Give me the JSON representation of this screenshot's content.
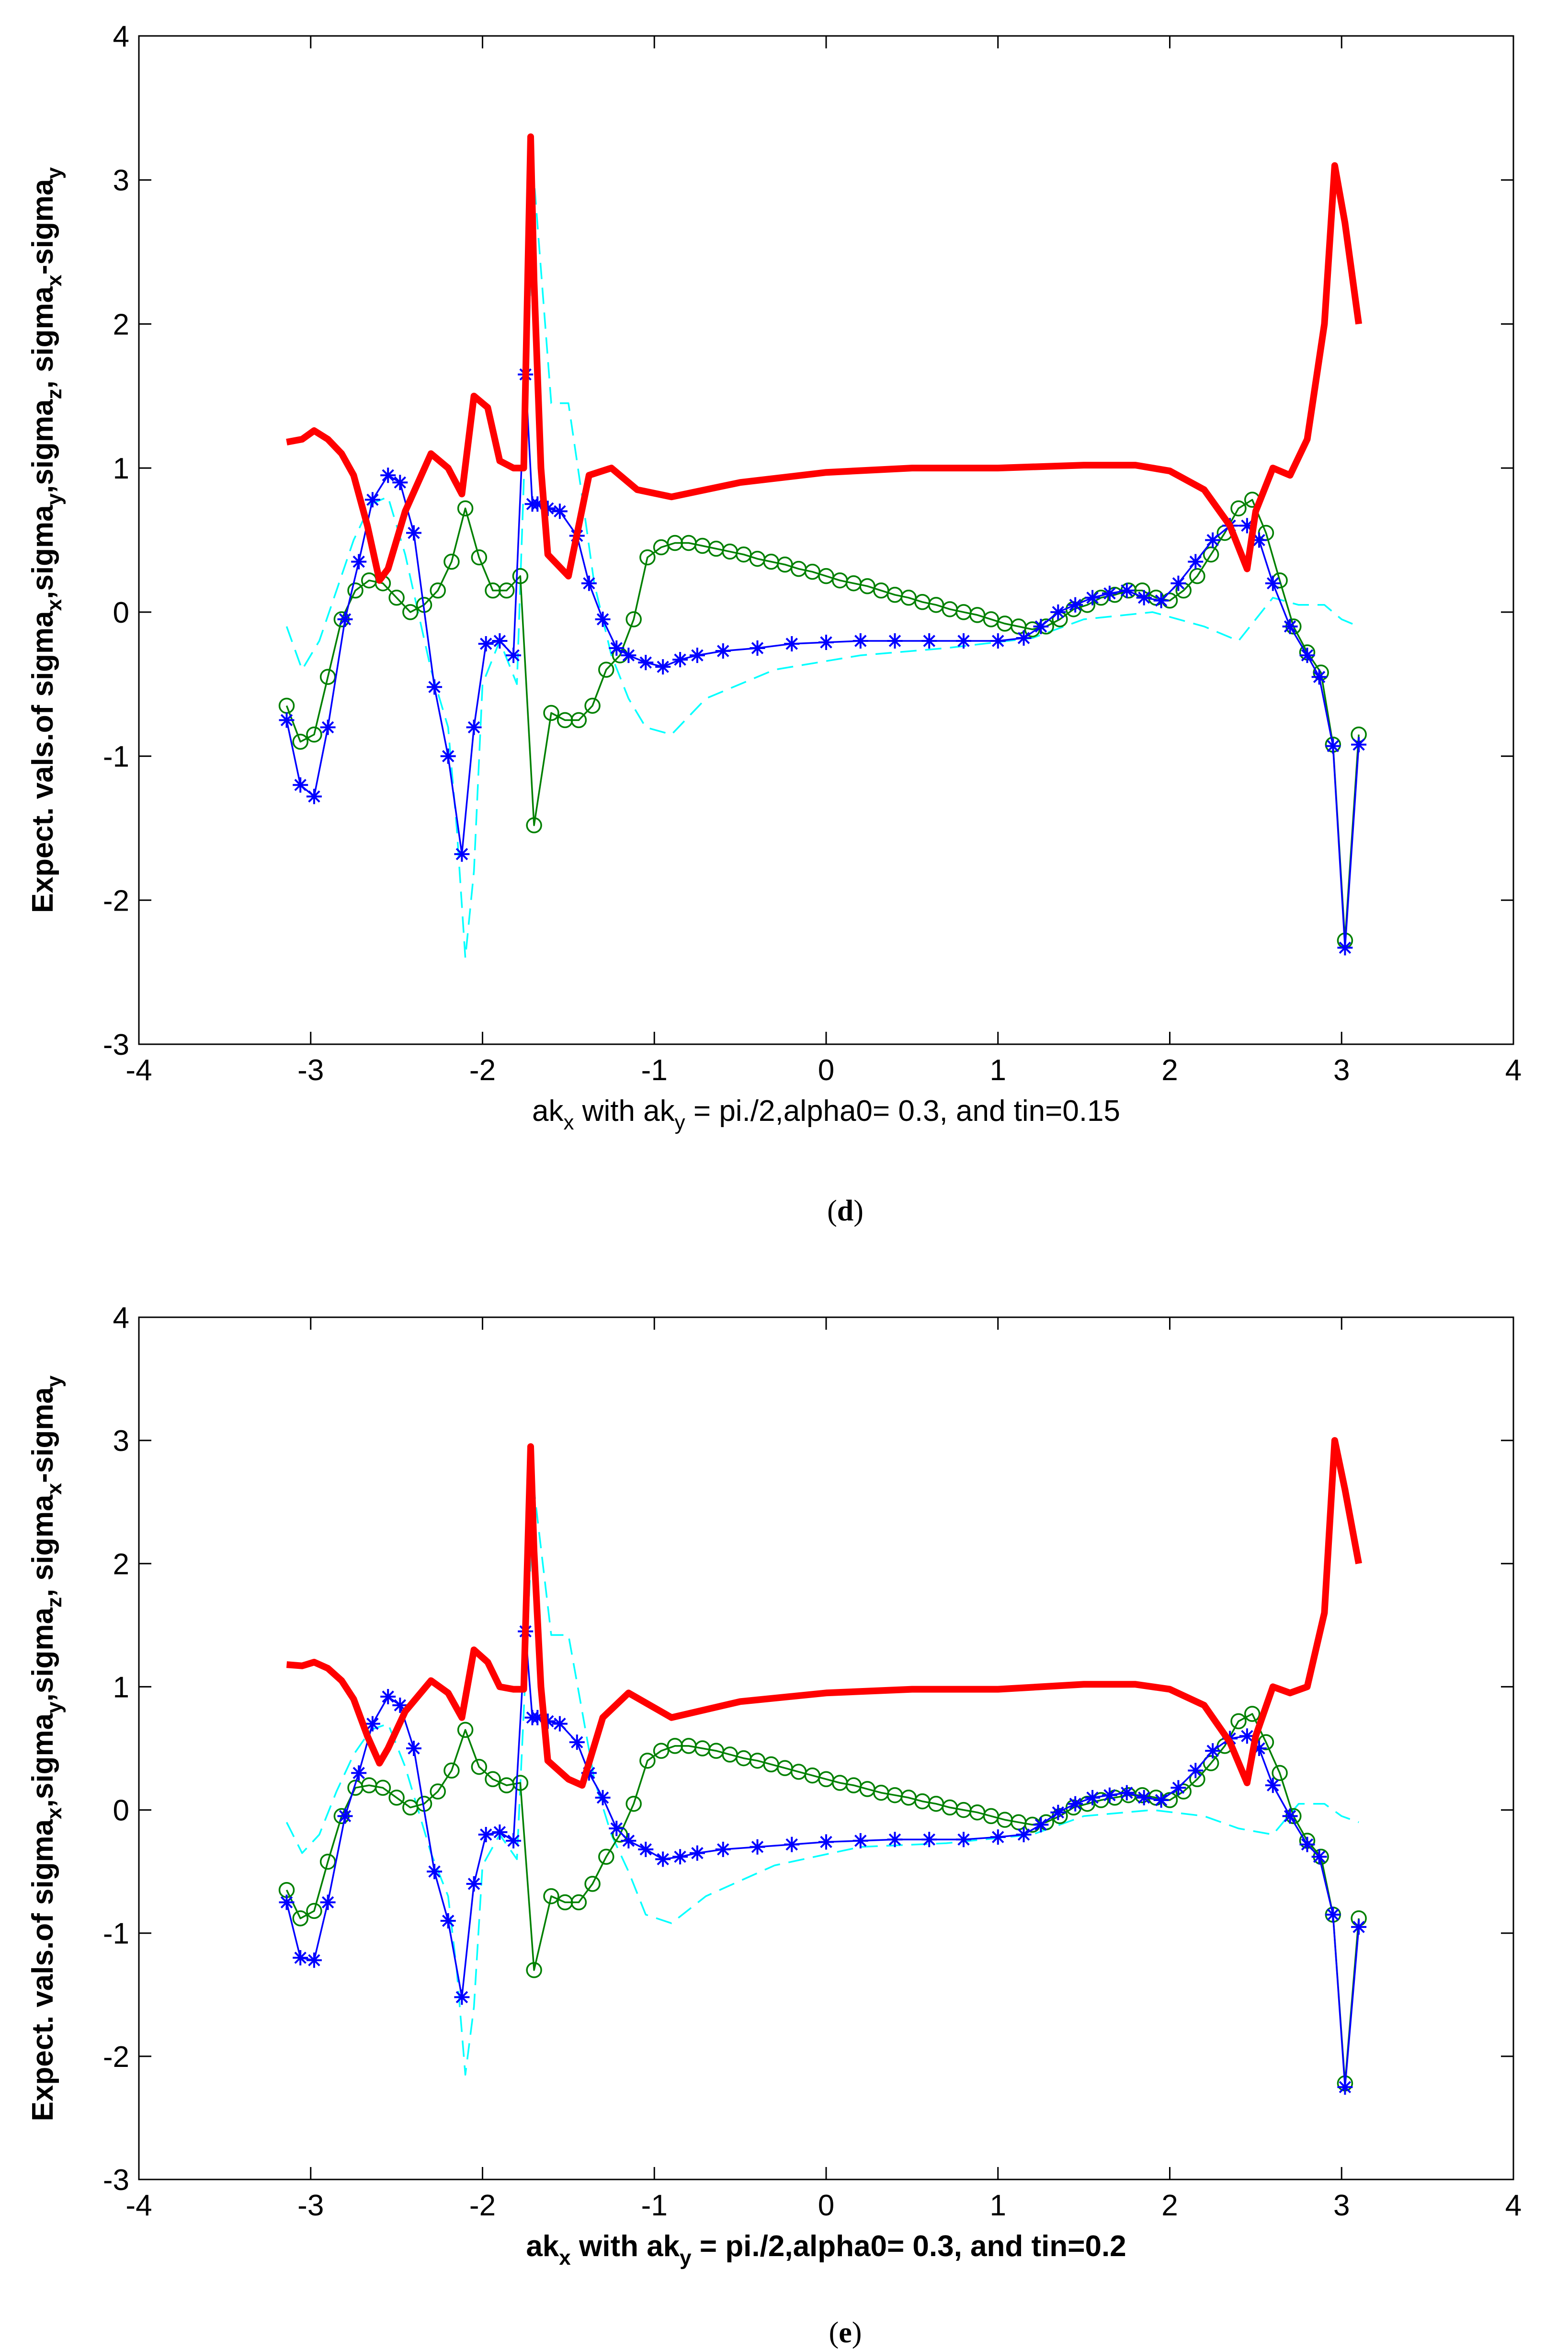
{
  "chart_data": [
    {
      "id": "d",
      "type": "line",
      "caption_open": "(",
      "caption_letter": "d",
      "caption_close": ")",
      "xlabel": {
        "pre": "ak",
        "pre_sub": "x",
        "mid": " with ak",
        "mid_sub": "y",
        "post": " = pi./2,alpha0= 0.3, and tin=0.15"
      },
      "ylabel": {
        "t1": "Expect. vals.of sigma",
        "s1": "x",
        "t2": ",sigma",
        "s2": "y",
        "t3": ",sigma",
        "s3": "z",
        "t4": ", sigma",
        "s4": "x",
        "t5": "-sigma",
        "s5": "y"
      },
      "xlim": [
        -4,
        4
      ],
      "ylim": [
        -3,
        4
      ],
      "xticks": [
        "-4",
        "-3",
        "-2",
        "-1",
        "0",
        "1",
        "2",
        "3",
        "4"
      ],
      "yticks": [
        "-3",
        "-2",
        "-1",
        "0",
        "1",
        "2",
        "3",
        "4"
      ],
      "series": [
        {
          "name": "sigma_x - sigma_y",
          "color": "#ff0000",
          "style": "thick",
          "x": [
            -3.14,
            -3.05,
            -2.98,
            -2.9,
            -2.82,
            -2.75,
            -2.67,
            -2.6,
            -2.55,
            -2.45,
            -2.3,
            -2.2,
            -2.12,
            -2.05,
            -1.97,
            -1.9,
            -1.82,
            -1.76,
            -1.72,
            -1.7,
            -1.66,
            -1.62,
            -1.5,
            -1.38,
            -1.25,
            -1.1,
            -0.9,
            -0.5,
            0,
            0.5,
            1.0,
            1.5,
            1.8,
            2.0,
            2.2,
            2.35,
            2.45,
            2.5,
            2.6,
            2.7,
            2.8,
            2.9,
            2.96,
            3.02,
            3.1
          ],
          "y": [
            1.18,
            1.2,
            1.26,
            1.2,
            1.1,
            0.95,
            0.6,
            0.22,
            0.3,
            0.7,
            1.1,
            1.0,
            0.82,
            1.5,
            1.42,
            1.05,
            1.0,
            1.0,
            3.3,
            2.3,
            1.0,
            0.4,
            0.25,
            0.95,
            1.0,
            0.85,
            0.8,
            0.9,
            0.97,
            1.0,
            1.0,
            1.02,
            1.02,
            0.98,
            0.85,
            0.6,
            0.3,
            0.7,
            1.0,
            0.95,
            1.2,
            2.0,
            3.1,
            2.7,
            2.0
          ]
        },
        {
          "name": "sigma_x",
          "color": "#0000ff",
          "style": "star",
          "x": [
            -3.14,
            -3.06,
            -2.98,
            -2.9,
            -2.8,
            -2.72,
            -2.64,
            -2.55,
            -2.48,
            -2.4,
            -2.28,
            -2.2,
            -2.12,
            -2.05,
            -1.98,
            -1.9,
            -1.82,
            -1.75,
            -1.71,
            -1.68,
            -1.62,
            -1.55,
            -1.45,
            -1.38,
            -1.3,
            -1.22,
            -1.15,
            -1.05,
            -0.95,
            -0.85,
            -0.75,
            -0.6,
            -0.4,
            -0.2,
            0,
            0.2,
            0.4,
            0.6,
            0.8,
            1.0,
            1.15,
            1.25,
            1.35,
            1.45,
            1.55,
            1.65,
            1.75,
            1.85,
            1.95,
            2.05,
            2.15,
            2.25,
            2.35,
            2.45,
            2.52,
            2.6,
            2.7,
            2.8,
            2.87,
            2.95,
            3.02,
            3.1
          ],
          "y": [
            -0.75,
            -1.2,
            -1.28,
            -0.8,
            -0.05,
            0.35,
            0.78,
            0.95,
            0.9,
            0.55,
            -0.52,
            -1.0,
            -1.68,
            -0.8,
            -0.22,
            -0.2,
            -0.3,
            1.65,
            0.75,
            0.75,
            0.72,
            0.7,
            0.53,
            0.2,
            -0.05,
            -0.25,
            -0.3,
            -0.35,
            -0.38,
            -0.33,
            -0.3,
            -0.27,
            -0.25,
            -0.22,
            -0.21,
            -0.2,
            -0.2,
            -0.2,
            -0.2,
            -0.2,
            -0.18,
            -0.1,
            0.0,
            0.05,
            0.1,
            0.13,
            0.15,
            0.1,
            0.08,
            0.2,
            0.35,
            0.5,
            0.6,
            0.6,
            0.5,
            0.2,
            -0.1,
            -0.3,
            -0.45,
            -0.93,
            -2.33,
            -0.92
          ]
        },
        {
          "name": "sigma_y",
          "color": "#00ffff",
          "style": "dash",
          "x": [
            -3.14,
            -3.05,
            -2.95,
            -2.85,
            -2.75,
            -2.65,
            -2.55,
            -2.45,
            -2.3,
            -2.2,
            -2.15,
            -2.1,
            -2.05,
            -2.0,
            -1.9,
            -1.8,
            -1.7,
            -1.6,
            -1.5,
            -1.42,
            -1.35,
            -1.25,
            -1.15,
            -1.05,
            -0.9,
            -0.7,
            -0.3,
            0.2,
            0.7,
            1.2,
            1.5,
            1.9,
            2.2,
            2.4,
            2.6,
            2.75,
            2.9,
            3.0,
            3.1
          ],
          "y": [
            -0.1,
            -0.4,
            -0.2,
            0.15,
            0.5,
            0.75,
            0.8,
            0.4,
            -0.4,
            -0.8,
            -1.5,
            -2.4,
            -1.8,
            -0.5,
            -0.2,
            -0.5,
            3.0,
            1.45,
            1.45,
            0.8,
            0.2,
            -0.3,
            -0.6,
            -0.8,
            -0.85,
            -0.6,
            -0.4,
            -0.3,
            -0.25,
            -0.18,
            -0.05,
            0.0,
            -0.1,
            -0.2,
            0.1,
            0.05,
            0.05,
            -0.05,
            -0.1
          ]
        },
        {
          "name": "sigma_z",
          "color": "#008000",
          "style": "circle",
          "x": [
            -3.14,
            -3.06,
            -2.98,
            -2.9,
            -2.82,
            -2.74,
            -2.66,
            -2.58,
            -2.5,
            -2.42,
            -2.34,
            -2.26,
            -2.18,
            -2.1,
            -2.02,
            -1.94,
            -1.86,
            -1.78,
            -1.7,
            -1.6,
            -1.52,
            -1.44,
            -1.36,
            -1.28,
            -1.2,
            -1.12,
            -1.04,
            -0.96,
            -0.88,
            -0.8,
            -0.72,
            -0.64,
            -0.56,
            -0.48,
            -0.4,
            -0.32,
            -0.24,
            -0.16,
            -0.08,
            0,
            0.08,
            0.16,
            0.24,
            0.32,
            0.4,
            0.48,
            0.56,
            0.64,
            0.72,
            0.8,
            0.88,
            0.96,
            1.04,
            1.12,
            1.2,
            1.28,
            1.36,
            1.44,
            1.52,
            1.6,
            1.68,
            1.76,
            1.84,
            1.92,
            2.0,
            2.08,
            2.16,
            2.24,
            2.32,
            2.4,
            2.48,
            2.56,
            2.64,
            2.72,
            2.8,
            2.88,
            2.95,
            3.02,
            3.1
          ],
          "y": [
            -0.65,
            -0.9,
            -0.85,
            -0.45,
            -0.05,
            0.15,
            0.22,
            0.2,
            0.1,
            0.0,
            0.05,
            0.15,
            0.35,
            0.72,
            0.38,
            0.15,
            0.15,
            0.25,
            -1.48,
            -0.7,
            -0.75,
            -0.75,
            -0.65,
            -0.4,
            -0.3,
            -0.05,
            0.38,
            0.45,
            0.48,
            0.48,
            0.46,
            0.44,
            0.42,
            0.4,
            0.37,
            0.35,
            0.33,
            0.3,
            0.28,
            0.25,
            0.22,
            0.2,
            0.18,
            0.15,
            0.12,
            0.1,
            0.07,
            0.05,
            0.02,
            0.0,
            -0.02,
            -0.05,
            -0.08,
            -0.1,
            -0.12,
            -0.1,
            -0.05,
            0.02,
            0.05,
            0.1,
            0.12,
            0.15,
            0.15,
            0.1,
            0.08,
            0.15,
            0.25,
            0.4,
            0.55,
            0.72,
            0.78,
            0.55,
            0.22,
            -0.1,
            -0.28,
            -0.42,
            -0.92,
            -2.28,
            -0.85
          ]
        }
      ]
    },
    {
      "id": "e",
      "type": "line",
      "caption_open": "(",
      "caption_letter": "e",
      "caption_close": ")",
      "xlabel": {
        "pre": "ak",
        "pre_sub": "x",
        "mid": " with ak",
        "mid_sub": "y",
        "post": " = pi./2,alpha0= 0.3, and tin=0.2"
      },
      "ylabel": {
        "t1": "Expect. vals.of sigma",
        "s1": "x",
        "t2": ",sigma",
        "s2": "y",
        "t3": ",sigma",
        "s3": "z",
        "t4": ", sigma",
        "s4": "x",
        "t5": "-sigma",
        "s5": "y"
      },
      "xlim": [
        -4,
        4
      ],
      "ylim": [
        -3,
        4
      ],
      "xticks": [
        "-4",
        "-3",
        "-2",
        "-1",
        "0",
        "1",
        "2",
        "3",
        "4"
      ],
      "yticks": [
        "-3",
        "-2",
        "-1",
        "0",
        "1",
        "2",
        "3",
        "4"
      ],
      "series": [
        {
          "name": "sigma_x - sigma_y",
          "color": "#ff0000",
          "style": "thick",
          "x": [
            -3.14,
            -3.05,
            -2.98,
            -2.9,
            -2.82,
            -2.75,
            -2.67,
            -2.6,
            -2.55,
            -2.45,
            -2.3,
            -2.2,
            -2.12,
            -2.05,
            -1.97,
            -1.9,
            -1.82,
            -1.76,
            -1.72,
            -1.7,
            -1.66,
            -1.62,
            -1.5,
            -1.42,
            -1.3,
            -1.15,
            -0.9,
            -0.5,
            0,
            0.5,
            1.0,
            1.5,
            1.8,
            2.0,
            2.2,
            2.35,
            2.45,
            2.5,
            2.6,
            2.7,
            2.8,
            2.9,
            2.96,
            3.02,
            3.1
          ],
          "y": [
            1.18,
            1.17,
            1.2,
            1.15,
            1.05,
            0.9,
            0.6,
            0.38,
            0.5,
            0.8,
            1.05,
            0.95,
            0.75,
            1.3,
            1.2,
            1.0,
            0.98,
            0.98,
            2.95,
            2.1,
            1.0,
            0.4,
            0.25,
            0.2,
            0.75,
            0.95,
            0.75,
            0.88,
            0.95,
            0.98,
            0.98,
            1.02,
            1.02,
            0.98,
            0.85,
            0.55,
            0.22,
            0.6,
            1.0,
            0.95,
            1.0,
            1.6,
            3.0,
            2.6,
            2.0
          ]
        },
        {
          "name": "sigma_x",
          "color": "#0000ff",
          "style": "star",
          "x": [
            -3.14,
            -3.06,
            -2.98,
            -2.9,
            -2.8,
            -2.72,
            -2.64,
            -2.55,
            -2.48,
            -2.4,
            -2.28,
            -2.2,
            -2.12,
            -2.05,
            -1.98,
            -1.9,
            -1.82,
            -1.75,
            -1.71,
            -1.68,
            -1.62,
            -1.55,
            -1.45,
            -1.38,
            -1.3,
            -1.22,
            -1.15,
            -1.05,
            -0.95,
            -0.85,
            -0.75,
            -0.6,
            -0.4,
            -0.2,
            0,
            0.2,
            0.4,
            0.6,
            0.8,
            1.0,
            1.15,
            1.25,
            1.35,
            1.45,
            1.55,
            1.65,
            1.75,
            1.85,
            1.95,
            2.05,
            2.15,
            2.25,
            2.35,
            2.45,
            2.52,
            2.6,
            2.7,
            2.8,
            2.87,
            2.95,
            3.02,
            3.1
          ],
          "y": [
            -0.75,
            -1.2,
            -1.22,
            -0.75,
            -0.05,
            0.3,
            0.7,
            0.92,
            0.85,
            0.5,
            -0.5,
            -0.9,
            -1.52,
            -0.6,
            -0.2,
            -0.18,
            -0.25,
            1.45,
            0.75,
            0.75,
            0.72,
            0.7,
            0.55,
            0.3,
            0.1,
            -0.15,
            -0.25,
            -0.32,
            -0.4,
            -0.38,
            -0.35,
            -0.32,
            -0.3,
            -0.28,
            -0.26,
            -0.25,
            -0.24,
            -0.24,
            -0.24,
            -0.22,
            -0.2,
            -0.12,
            -0.02,
            0.05,
            0.1,
            0.12,
            0.14,
            0.1,
            0.08,
            0.18,
            0.32,
            0.48,
            0.58,
            0.6,
            0.5,
            0.2,
            -0.05,
            -0.28,
            -0.38,
            -0.85,
            -2.25,
            -0.95
          ]
        },
        {
          "name": "sigma_y",
          "color": "#00ffff",
          "style": "dash",
          "x": [
            -3.14,
            -3.05,
            -2.95,
            -2.85,
            -2.75,
            -2.65,
            -2.55,
            -2.45,
            -2.3,
            -2.2,
            -2.15,
            -2.1,
            -2.05,
            -2.0,
            -1.9,
            -1.8,
            -1.7,
            -1.6,
            -1.5,
            -1.42,
            -1.35,
            -1.25,
            -1.15,
            -1.05,
            -0.9,
            -0.7,
            -0.3,
            0.2,
            0.7,
            1.2,
            1.5,
            1.9,
            2.2,
            2.4,
            2.6,
            2.75,
            2.9,
            3.0,
            3.1
          ],
          "y": [
            -0.1,
            -0.35,
            -0.2,
            0.15,
            0.45,
            0.65,
            0.7,
            0.35,
            -0.35,
            -0.7,
            -1.3,
            -2.15,
            -1.6,
            -0.45,
            -0.2,
            -0.4,
            2.6,
            1.42,
            1.42,
            0.8,
            0.25,
            -0.2,
            -0.5,
            -0.85,
            -0.92,
            -0.7,
            -0.45,
            -0.3,
            -0.27,
            -0.2,
            -0.05,
            0.0,
            -0.05,
            -0.15,
            -0.2,
            0.05,
            0.05,
            -0.05,
            -0.1
          ]
        },
        {
          "name": "sigma_z",
          "color": "#008000",
          "style": "circle",
          "x": [
            -3.14,
            -3.06,
            -2.98,
            -2.9,
            -2.82,
            -2.74,
            -2.66,
            -2.58,
            -2.5,
            -2.42,
            -2.34,
            -2.26,
            -2.18,
            -2.1,
            -2.02,
            -1.94,
            -1.86,
            -1.78,
            -1.7,
            -1.6,
            -1.52,
            -1.44,
            -1.36,
            -1.28,
            -1.2,
            -1.12,
            -1.04,
            -0.96,
            -0.88,
            -0.8,
            -0.72,
            -0.64,
            -0.56,
            -0.48,
            -0.4,
            -0.32,
            -0.24,
            -0.16,
            -0.08,
            0,
            0.08,
            0.16,
            0.24,
            0.32,
            0.4,
            0.48,
            0.56,
            0.64,
            0.72,
            0.8,
            0.88,
            0.96,
            1.04,
            1.12,
            1.2,
            1.28,
            1.36,
            1.44,
            1.52,
            1.6,
            1.68,
            1.76,
            1.84,
            1.92,
            2.0,
            2.08,
            2.16,
            2.24,
            2.32,
            2.4,
            2.48,
            2.56,
            2.64,
            2.72,
            2.8,
            2.88,
            2.95,
            3.02,
            3.1
          ],
          "y": [
            -0.65,
            -0.88,
            -0.82,
            -0.42,
            -0.05,
            0.18,
            0.2,
            0.18,
            0.1,
            0.02,
            0.05,
            0.15,
            0.32,
            0.65,
            0.35,
            0.25,
            0.2,
            0.22,
            -1.3,
            -0.7,
            -0.75,
            -0.75,
            -0.6,
            -0.38,
            -0.2,
            0.05,
            0.4,
            0.48,
            0.52,
            0.52,
            0.5,
            0.48,
            0.45,
            0.42,
            0.4,
            0.37,
            0.34,
            0.31,
            0.28,
            0.25,
            0.22,
            0.2,
            0.17,
            0.14,
            0.12,
            0.1,
            0.07,
            0.05,
            0.02,
            0.0,
            -0.02,
            -0.05,
            -0.08,
            -0.1,
            -0.12,
            -0.1,
            -0.05,
            0.02,
            0.05,
            0.08,
            0.1,
            0.12,
            0.12,
            0.1,
            0.08,
            0.15,
            0.25,
            0.38,
            0.52,
            0.72,
            0.78,
            0.55,
            0.3,
            -0.05,
            -0.25,
            -0.38,
            -0.85,
            -2.22,
            -0.88
          ]
        }
      ]
    }
  ]
}
